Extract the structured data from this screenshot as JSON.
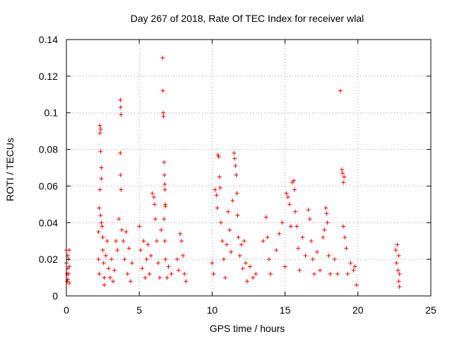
{
  "chart_data": {
    "type": "scatter",
    "title": "Day 267 of 2018, Rate Of TEC Index for receiver wlal",
    "xlabel": "GPS time / hours",
    "ylabel": "ROTI / TECUs",
    "xlim": [
      0,
      25
    ],
    "ylim": [
      0,
      0.14
    ],
    "xticks": [
      0,
      5,
      10,
      15,
      20,
      25
    ],
    "yticks": [
      0,
      0.02,
      0.04,
      0.06,
      0.08,
      0.1,
      0.12,
      0.14
    ],
    "grid": true,
    "marker": "+",
    "color": "#ff0000",
    "series": [
      {
        "name": "ROTI",
        "points": [
          [
            0.0,
            0.025
          ],
          [
            0.0,
            0.018
          ],
          [
            0.05,
            0.012
          ],
          [
            0.05,
            0.008
          ],
          [
            0.1,
            0.022
          ],
          [
            0.1,
            0.015
          ],
          [
            0.1,
            0.009
          ],
          [
            0.15,
            0.02
          ],
          [
            0.15,
            0.012
          ],
          [
            0.2,
            0.025
          ],
          [
            0.2,
            0.016
          ],
          [
            0.2,
            0.007
          ],
          [
            2.2,
            0.035
          ],
          [
            2.2,
            0.02
          ],
          [
            2.25,
            0.048
          ],
          [
            2.25,
            0.012
          ],
          [
            2.3,
            0.093
          ],
          [
            2.3,
            0.089
          ],
          [
            2.35,
            0.091
          ],
          [
            2.35,
            0.079
          ],
          [
            2.4,
            0.07
          ],
          [
            2.4,
            0.064
          ],
          [
            2.3,
            0.058
          ],
          [
            2.35,
            0.044
          ],
          [
            2.4,
            0.04
          ],
          [
            2.45,
            0.038
          ],
          [
            2.5,
            0.032
          ],
          [
            2.5,
            0.025
          ],
          [
            2.55,
            0.018
          ],
          [
            2.6,
            0.01
          ],
          [
            2.6,
            0.006
          ],
          [
            2.7,
            0.022
          ],
          [
            2.8,
            0.03
          ],
          [
            2.9,
            0.015
          ],
          [
            3.0,
            0.01
          ],
          [
            3.1,
            0.02
          ],
          [
            3.2,
            0.008
          ],
          [
            3.3,
            0.014
          ],
          [
            3.4,
            0.03
          ],
          [
            3.5,
            0.025
          ],
          [
            3.6,
            0.042
          ],
          [
            3.7,
            0.107
          ],
          [
            3.72,
            0.103
          ],
          [
            3.75,
            0.099
          ],
          [
            3.7,
            0.078
          ],
          [
            3.72,
            0.066
          ],
          [
            3.75,
            0.058
          ],
          [
            3.8,
            0.036
          ],
          [
            3.9,
            0.03
          ],
          [
            4.0,
            0.02
          ],
          [
            4.1,
            0.035
          ],
          [
            4.2,
            0.012
          ],
          [
            4.3,
            0.026
          ],
          [
            4.4,
            0.008
          ],
          [
            4.5,
            0.018
          ],
          [
            5.0,
            0.038
          ],
          [
            5.1,
            0.025
          ],
          [
            5.2,
            0.015
          ],
          [
            5.3,
            0.03
          ],
          [
            5.4,
            0.01
          ],
          [
            5.5,
            0.02
          ],
          [
            5.6,
            0.028
          ],
          [
            5.7,
            0.012
          ],
          [
            5.8,
            0.022
          ],
          [
            5.9,
            0.056
          ],
          [
            6.0,
            0.054
          ],
          [
            6.05,
            0.05
          ],
          [
            6.1,
            0.042
          ],
          [
            6.2,
            0.03
          ],
          [
            6.3,
            0.018
          ],
          [
            6.4,
            0.01
          ],
          [
            6.5,
            0.036
          ],
          [
            6.6,
            0.13
          ],
          [
            6.62,
            0.112
          ],
          [
            6.64,
            0.1
          ],
          [
            6.66,
            0.098
          ],
          [
            6.7,
            0.073
          ],
          [
            6.72,
            0.066
          ],
          [
            6.74,
            0.061
          ],
          [
            6.76,
            0.058
          ],
          [
            6.78,
            0.05
          ],
          [
            6.8,
            0.049
          ],
          [
            6.7,
            0.042
          ],
          [
            6.75,
            0.03
          ],
          [
            6.8,
            0.02
          ],
          [
            6.9,
            0.01
          ],
          [
            7.0,
            0.016
          ],
          [
            7.2,
            0.012
          ],
          [
            7.6,
            0.02
          ],
          [
            7.7,
            0.014
          ],
          [
            7.8,
            0.034
          ],
          [
            7.9,
            0.03
          ],
          [
            8.0,
            0.022
          ],
          [
            8.1,
            0.012
          ],
          [
            8.2,
            0.008
          ],
          [
            10.0,
            0.018
          ],
          [
            10.1,
            0.012
          ],
          [
            10.2,
            0.058
          ],
          [
            10.3,
            0.055
          ],
          [
            10.35,
            0.048
          ],
          [
            10.4,
            0.077
          ],
          [
            10.45,
            0.076
          ],
          [
            10.5,
            0.065
          ],
          [
            10.55,
            0.059
          ],
          [
            10.6,
            0.04
          ],
          [
            10.7,
            0.03
          ],
          [
            10.8,
            0.02
          ],
          [
            10.9,
            0.01
          ],
          [
            11.0,
            0.028
          ],
          [
            11.1,
            0.046
          ],
          [
            11.2,
            0.036
          ],
          [
            11.3,
            0.024
          ],
          [
            11.4,
            0.052
          ],
          [
            11.5,
            0.078
          ],
          [
            11.55,
            0.075
          ],
          [
            11.6,
            0.071
          ],
          [
            11.65,
            0.066
          ],
          [
            11.7,
            0.056
          ],
          [
            11.75,
            0.044
          ],
          [
            11.8,
            0.032
          ],
          [
            11.9,
            0.022
          ],
          [
            12.0,
            0.028
          ],
          [
            12.1,
            0.015
          ],
          [
            12.2,
            0.03
          ],
          [
            12.3,
            0.018
          ],
          [
            12.4,
            0.008
          ],
          [
            12.6,
            0.016
          ],
          [
            12.8,
            0.01
          ],
          [
            13.0,
            0.012
          ],
          [
            13.5,
            0.03
          ],
          [
            13.7,
            0.043
          ],
          [
            13.8,
            0.032
          ],
          [
            13.9,
            0.02
          ],
          [
            14.0,
            0.012
          ],
          [
            14.4,
            0.025
          ],
          [
            14.6,
            0.034
          ],
          [
            14.8,
            0.04
          ],
          [
            15.0,
            0.016
          ],
          [
            15.1,
            0.056
          ],
          [
            15.2,
            0.054
          ],
          [
            15.3,
            0.05
          ],
          [
            15.4,
            0.038
          ],
          [
            15.5,
            0.062
          ],
          [
            15.6,
            0.063
          ],
          [
            15.65,
            0.058
          ],
          [
            15.7,
            0.046
          ],
          [
            15.8,
            0.038
          ],
          [
            15.9,
            0.026
          ],
          [
            16.0,
            0.014
          ],
          [
            16.2,
            0.032
          ],
          [
            16.4,
            0.022
          ],
          [
            16.6,
            0.047
          ],
          [
            16.7,
            0.042
          ],
          [
            16.8,
            0.03
          ],
          [
            16.9,
            0.02
          ],
          [
            17.0,
            0.012
          ],
          [
            17.2,
            0.024
          ],
          [
            17.4,
            0.014
          ],
          [
            17.6,
            0.032
          ],
          [
            17.7,
            0.036
          ],
          [
            17.8,
            0.048
          ],
          [
            17.85,
            0.045
          ],
          [
            17.9,
            0.04
          ],
          [
            18.0,
            0.022
          ],
          [
            18.1,
            0.012
          ],
          [
            18.4,
            0.02
          ],
          [
            18.6,
            0.012
          ],
          [
            18.8,
            0.112
          ],
          [
            18.9,
            0.069
          ],
          [
            18.95,
            0.067
          ],
          [
            19.0,
            0.062
          ],
          [
            19.05,
            0.065
          ],
          [
            19.0,
            0.038
          ],
          [
            19.1,
            0.032
          ],
          [
            19.2,
            0.026
          ],
          [
            19.3,
            0.012
          ],
          [
            19.5,
            0.018
          ],
          [
            19.7,
            0.014
          ],
          [
            19.8,
            0.016
          ],
          [
            19.9,
            0.006
          ],
          [
            22.6,
            0.025
          ],
          [
            22.65,
            0.018
          ],
          [
            22.7,
            0.028
          ],
          [
            22.75,
            0.014
          ],
          [
            22.8,
            0.022
          ],
          [
            22.8,
            0.008
          ],
          [
            22.85,
            0.012
          ],
          [
            22.85,
            0.005
          ]
        ]
      }
    ]
  }
}
